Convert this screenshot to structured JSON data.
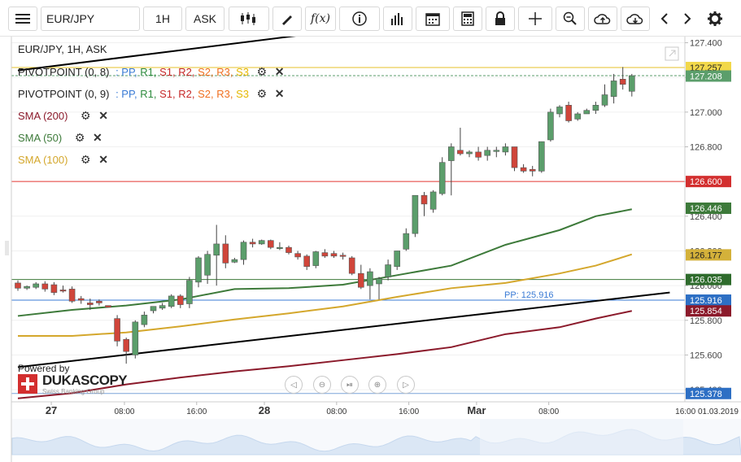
{
  "toolbar": {
    "symbol": "EUR/JPY",
    "timeframe": "1H",
    "side": "ASK",
    "icons": [
      "menu-icon",
      "candles-icon",
      "pencil-icon",
      "function-icon",
      "info-icon",
      "bar-chart-icon",
      "calendar-icon",
      "calculator-icon",
      "lock-icon",
      "crosshair-icon",
      "zoom-icon",
      "cloud-upload-icon",
      "cloud-download-icon",
      "chevron-left-icon",
      "chevron-right-icon",
      "gear-icon"
    ]
  },
  "legend": {
    "title": "EUR/JPY, 1H, ASK",
    "pivot1": {
      "name": "PIVOTPOINT (0, 8)",
      "labels": [
        ": PP,",
        "R1,",
        "S1,",
        "R2,",
        "S2,",
        "R3,",
        "S3"
      ]
    },
    "pivot2": {
      "name": "PIVOTPOINT (0, 9)",
      "labels": [
        ": PP,",
        "R1,",
        "S1,",
        "R2,",
        "S2,",
        "R3,",
        "S3"
      ]
    },
    "sma200": "SMA (200)",
    "sma50": "SMA (50)",
    "sma100": "SMA (100)"
  },
  "branding": {
    "powered": "Powered by",
    "name": "DUKASCOPY",
    "sub": "Swiss Banking Group"
  },
  "colors": {
    "up": "#5b9e6b",
    "down": "#d0453a",
    "pp": "#3a7bd5",
    "r1": "#2e8b3e",
    "s1": "#c62828",
    "r2": "#c62828",
    "s2": "#f07020",
    "r3": "#f07020",
    "s3": "#e6b800",
    "sma200": "#8b1a2b",
    "sma50": "#3d7a3a",
    "sma100": "#d4a72c",
    "trend": "#000000"
  },
  "chart_data": {
    "type": "candlestick",
    "title": "EUR/JPY, 1H, ASK",
    "y_ticks": [
      125.4,
      125.6,
      125.8,
      126.0,
      126.2,
      126.4,
      126.6,
      126.8,
      127.0,
      127.2,
      127.4
    ],
    "ylim": [
      125.33,
      127.44
    ],
    "x_ticks": [
      {
        "label": "27",
        "bold": true,
        "idx": 3.7
      },
      {
        "label": "08:00",
        "bold": false,
        "idx": 11.8
      },
      {
        "label": "16:00",
        "bold": false,
        "idx": 19.8
      },
      {
        "label": "28",
        "bold": true,
        "idx": 27.3
      },
      {
        "label": "08:00",
        "bold": false,
        "idx": 35.3
      },
      {
        "label": "16:00",
        "bold": false,
        "idx": 43.3
      },
      {
        "label": "Mar",
        "bold": true,
        "idx": 50.8
      },
      {
        "label": "08:00",
        "bold": false,
        "idx": 58.8
      }
    ],
    "x_end_label": "16:00 01.03.2019",
    "candles": [
      {
        "o": 126.015,
        "h": 126.03,
        "c": 125.985,
        "l": 125.97
      },
      {
        "o": 125.985,
        "h": 126.0,
        "c": 125.995,
        "l": 125.975
      },
      {
        "o": 125.99,
        "h": 126.02,
        "c": 126.01,
        "l": 125.98
      },
      {
        "o": 126.01,
        "h": 126.025,
        "c": 125.98,
        "l": 125.965
      },
      {
        "o": 126.005,
        "h": 126.02,
        "c": 125.96,
        "l": 125.945
      },
      {
        "o": 125.975,
        "h": 126.0,
        "c": 125.97,
        "l": 125.96
      },
      {
        "o": 125.98,
        "h": 125.995,
        "c": 125.91,
        "l": 125.9
      },
      {
        "o": 125.925,
        "h": 125.94,
        "c": 125.915,
        "l": 125.895
      },
      {
        "o": 125.9,
        "h": 125.925,
        "c": 125.89,
        "l": 125.86
      },
      {
        "o": 125.91,
        "h": 125.92,
        "c": 125.9,
        "l": 125.885
      },
      {
        "o": 125.885,
        "h": 125.885,
        "c": 125.875,
        "l": 125.875
      },
      {
        "o": 125.81,
        "h": 125.83,
        "c": 125.68,
        "l": 125.65
      },
      {
        "o": 125.69,
        "h": 125.7,
        "c": 125.62,
        "l": 125.55
      },
      {
        "o": 125.6,
        "h": 125.8,
        "c": 125.79,
        "l": 125.58
      },
      {
        "o": 125.775,
        "h": 125.85,
        "c": 125.83,
        "l": 125.76
      },
      {
        "o": 125.855,
        "h": 125.875,
        "c": 125.88,
        "l": 125.84
      },
      {
        "o": 125.87,
        "h": 125.9,
        "c": 125.885,
        "l": 125.86
      },
      {
        "o": 125.88,
        "h": 125.95,
        "c": 125.94,
        "l": 125.87
      },
      {
        "o": 125.94,
        "h": 125.95,
        "c": 125.89,
        "l": 125.87
      },
      {
        "o": 125.895,
        "h": 126.05,
        "c": 126.03,
        "l": 125.87
      },
      {
        "o": 126.02,
        "h": 126.17,
        "c": 126.16,
        "l": 125.99
      },
      {
        "o": 126.06,
        "h": 126.2,
        "c": 126.18,
        "l": 126.01
      },
      {
        "o": 126.175,
        "h": 126.35,
        "c": 126.24,
        "l": 126.0
      },
      {
        "o": 126.24,
        "h": 126.29,
        "c": 126.13,
        "l": 126.1
      },
      {
        "o": 126.135,
        "h": 126.16,
        "c": 126.15,
        "l": 126.13
      },
      {
        "o": 126.15,
        "h": 126.26,
        "c": 126.25,
        "l": 126.12
      },
      {
        "o": 126.25,
        "h": 126.27,
        "c": 126.24,
        "l": 126.22
      },
      {
        "o": 126.24,
        "h": 126.265,
        "c": 126.26,
        "l": 126.235
      },
      {
        "o": 126.26,
        "h": 126.265,
        "c": 126.22,
        "l": 126.21
      },
      {
        "o": 126.22,
        "h": 126.25,
        "c": 126.22,
        "l": 126.205
      },
      {
        "o": 126.22,
        "h": 126.23,
        "c": 126.19,
        "l": 126.18
      },
      {
        "o": 126.185,
        "h": 126.2,
        "c": 126.165,
        "l": 126.15
      },
      {
        "o": 126.17,
        "h": 126.18,
        "c": 126.11,
        "l": 126.09
      },
      {
        "o": 126.115,
        "h": 126.2,
        "c": 126.195,
        "l": 126.1
      },
      {
        "o": 126.19,
        "h": 126.21,
        "c": 126.17,
        "l": 126.16
      },
      {
        "o": 126.185,
        "h": 126.2,
        "c": 126.17,
        "l": 126.16
      },
      {
        "o": 126.175,
        "h": 126.19,
        "c": 126.17,
        "l": 126.15
      },
      {
        "o": 126.16,
        "h": 126.17,
        "c": 126.07,
        "l": 126.06
      },
      {
        "o": 126.07,
        "h": 126.12,
        "c": 125.99,
        "l": 125.98
      },
      {
        "o": 126.0,
        "h": 126.1,
        "c": 126.08,
        "l": 125.92
      },
      {
        "o": 126.01,
        "h": 126.05,
        "c": 126.04,
        "l": 125.92
      },
      {
        "o": 126.05,
        "h": 126.15,
        "c": 126.12,
        "l": 126.03
      },
      {
        "o": 126.11,
        "h": 126.2,
        "c": 126.2,
        "l": 126.09
      },
      {
        "o": 126.21,
        "h": 126.33,
        "c": 126.3,
        "l": 126.2
      },
      {
        "o": 126.3,
        "h": 126.52,
        "c": 126.52,
        "l": 126.28
      },
      {
        "o": 126.52,
        "h": 126.54,
        "c": 126.47,
        "l": 126.4
      },
      {
        "o": 126.44,
        "h": 126.55,
        "c": 126.54,
        "l": 126.42
      },
      {
        "o": 126.53,
        "h": 126.74,
        "c": 126.71,
        "l": 126.52
      },
      {
        "o": 126.72,
        "h": 126.82,
        "c": 126.8,
        "l": 126.52
      },
      {
        "o": 126.78,
        "h": 126.91,
        "c": 126.76,
        "l": 126.75
      },
      {
        "o": 126.76,
        "h": 126.78,
        "c": 126.77,
        "l": 126.74
      },
      {
        "o": 126.77,
        "h": 126.8,
        "c": 126.74,
        "l": 126.72
      },
      {
        "o": 126.75,
        "h": 126.8,
        "c": 126.78,
        "l": 126.72
      },
      {
        "o": 126.78,
        "h": 126.8,
        "c": 126.78,
        "l": 126.74
      },
      {
        "o": 126.77,
        "h": 126.82,
        "c": 126.8,
        "l": 126.75
      },
      {
        "o": 126.8,
        "h": 126.8,
        "c": 126.68,
        "l": 126.66
      },
      {
        "o": 126.68,
        "h": 126.7,
        "c": 126.66,
        "l": 126.65
      },
      {
        "o": 126.67,
        "h": 126.69,
        "c": 126.66,
        "l": 126.63
      },
      {
        "o": 126.66,
        "h": 126.83,
        "c": 126.83,
        "l": 126.65
      },
      {
        "o": 126.84,
        "h": 127.02,
        "c": 127.0,
        "l": 126.83
      },
      {
        "o": 126.99,
        "h": 127.04,
        "c": 127.03,
        "l": 126.97
      },
      {
        "o": 127.04,
        "h": 127.06,
        "c": 126.95,
        "l": 126.94
      },
      {
        "o": 126.96,
        "h": 127.0,
        "c": 126.99,
        "l": 126.95
      },
      {
        "o": 126.99,
        "h": 127.02,
        "c": 127.01,
        "l": 126.99
      },
      {
        "o": 127.01,
        "h": 127.06,
        "c": 127.04,
        "l": 126.99
      },
      {
        "o": 127.04,
        "h": 127.16,
        "c": 127.1,
        "l": 127.03
      },
      {
        "o": 127.09,
        "h": 127.22,
        "c": 127.18,
        "l": 127.05
      },
      {
        "o": 127.19,
        "h": 127.26,
        "c": 127.16,
        "l": 127.13
      },
      {
        "o": 127.12,
        "h": 127.22,
        "c": 127.21,
        "l": 127.09
      }
    ],
    "sma50": [
      {
        "i": 0,
        "v": 125.825
      },
      {
        "i": 6,
        "v": 125.86
      },
      {
        "i": 12,
        "v": 125.885
      },
      {
        "i": 18,
        "v": 125.92
      },
      {
        "i": 24,
        "v": 125.98
      },
      {
        "i": 30,
        "v": 125.985
      },
      {
        "i": 36,
        "v": 126.005
      },
      {
        "i": 42,
        "v": 126.06
      },
      {
        "i": 48,
        "v": 126.115
      },
      {
        "i": 54,
        "v": 126.235
      },
      {
        "i": 60,
        "v": 126.32
      },
      {
        "i": 64,
        "v": 126.4
      },
      {
        "i": 68,
        "v": 126.44
      }
    ],
    "sma100": [
      {
        "i": 0,
        "v": 125.71
      },
      {
        "i": 6,
        "v": 125.71
      },
      {
        "i": 12,
        "v": 125.73
      },
      {
        "i": 18,
        "v": 125.765
      },
      {
        "i": 24,
        "v": 125.805
      },
      {
        "i": 30,
        "v": 125.84
      },
      {
        "i": 36,
        "v": 125.88
      },
      {
        "i": 42,
        "v": 125.935
      },
      {
        "i": 48,
        "v": 125.985
      },
      {
        "i": 54,
        "v": 126.015
      },
      {
        "i": 60,
        "v": 126.07
      },
      {
        "i": 64,
        "v": 126.115
      },
      {
        "i": 68,
        "v": 126.18
      }
    ],
    "sma200": [
      {
        "i": 0,
        "v": 125.35
      },
      {
        "i": 6,
        "v": 125.38
      },
      {
        "i": 12,
        "v": 125.43
      },
      {
        "i": 18,
        "v": 125.47
      },
      {
        "i": 24,
        "v": 125.505
      },
      {
        "i": 30,
        "v": 125.535
      },
      {
        "i": 36,
        "v": 125.57
      },
      {
        "i": 42,
        "v": 125.605
      },
      {
        "i": 48,
        "v": 125.645
      },
      {
        "i": 54,
        "v": 125.72
      },
      {
        "i": 60,
        "v": 125.76
      },
      {
        "i": 64,
        "v": 125.81
      },
      {
        "i": 68,
        "v": 125.854
      }
    ],
    "trendline_lower": [
      {
        "x": 0,
        "y": 125.53
      },
      {
        "x": 72.2,
        "y": 125.96
      }
    ],
    "trendline_upper": [
      {
        "x": 0,
        "y": 127.24
      },
      {
        "x": 37,
        "y": 127.48
      }
    ],
    "hlines": [
      {
        "name": "resistance",
        "y": 126.6,
        "color": "#e53935",
        "label": "126.600"
      },
      {
        "name": "ask-level",
        "y": 127.257,
        "color": "#e6c229",
        "label": "127.257"
      },
      {
        "name": "support",
        "y": 126.035,
        "color": "#3d7a3a",
        "label": "126.035"
      },
      {
        "name": "pp-line",
        "y": 125.916,
        "color": "#3a7bd5",
        "label": "125.916",
        "tag": "PP: 125.916"
      }
    ],
    "price_labels": [
      {
        "label": "127.257",
        "y": 127.257,
        "bg": "#f2d84a",
        "fg": "#222"
      },
      {
        "label": "127.208",
        "y": 127.208,
        "bg": "#5b9e6b",
        "fg": "#fff"
      },
      {
        "label": "126.600",
        "y": 126.6,
        "bg": "#d32f2f",
        "fg": "#fff"
      },
      {
        "label": "126.446",
        "y": 126.446,
        "bg": "#3d7a3a",
        "fg": "#fff"
      },
      {
        "label": "126.177",
        "y": 126.177,
        "bg": "#d4b13a",
        "fg": "#222"
      },
      {
        "label": "126.035",
        "y": 126.035,
        "bg": "#2e6b2c",
        "fg": "#fff"
      },
      {
        "label": "125.916",
        "y": 125.916,
        "bg": "#2d6fc4",
        "fg": "#fff"
      },
      {
        "label": "125.854",
        "y": 125.854,
        "bg": "#8b1a2b",
        "fg": "#fff"
      },
      {
        "label": "125.378",
        "y": 125.378,
        "bg": "#2d6fc4",
        "fg": "#fff"
      }
    ]
  }
}
